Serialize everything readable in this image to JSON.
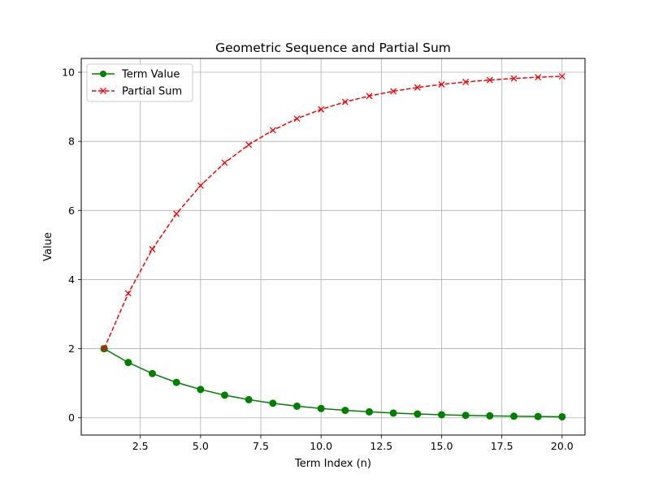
{
  "chart_data": {
    "type": "line",
    "title": "Geometric Sequence and Partial Sum",
    "xlabel": "Term Index (n)",
    "ylabel": "Value",
    "xlim": [
      0.05,
      20.95
    ],
    "ylim": [
      -0.5,
      10.4
    ],
    "xticks": [
      2.5,
      5.0,
      7.5,
      10.0,
      12.5,
      15.0,
      17.5,
      20.0
    ],
    "xtick_labels": [
      "2.5",
      "5.0",
      "7.5",
      "10.0",
      "12.5",
      "15.0",
      "17.5",
      "20.0"
    ],
    "yticks": [
      0,
      2,
      4,
      6,
      8,
      10
    ],
    "ytick_labels": [
      "0",
      "2",
      "4",
      "6",
      "8",
      "10"
    ],
    "grid": true,
    "legend_position": "top-left",
    "x": [
      1,
      2,
      3,
      4,
      5,
      6,
      7,
      8,
      9,
      10,
      11,
      12,
      13,
      14,
      15,
      16,
      17,
      18,
      19,
      20
    ],
    "series": [
      {
        "name": "Term Value",
        "color": "#008000",
        "line_style": "solid",
        "marker": "circle",
        "values": [
          2.0,
          1.6,
          1.28,
          1.024,
          0.819,
          0.655,
          0.524,
          0.419,
          0.336,
          0.268,
          0.215,
          0.172,
          0.137,
          0.11,
          0.088,
          0.07,
          0.056,
          0.045,
          0.036,
          0.029
        ]
      },
      {
        "name": "Partial Sum",
        "color": "#ff0000",
        "line_style": "dashed",
        "marker": "x",
        "values": [
          2.0,
          3.6,
          4.88,
          5.904,
          6.723,
          7.379,
          7.903,
          8.322,
          8.658,
          8.926,
          9.141,
          9.313,
          9.45,
          9.56,
          9.648,
          9.719,
          9.775,
          9.82,
          9.856,
          9.885
        ]
      }
    ]
  }
}
